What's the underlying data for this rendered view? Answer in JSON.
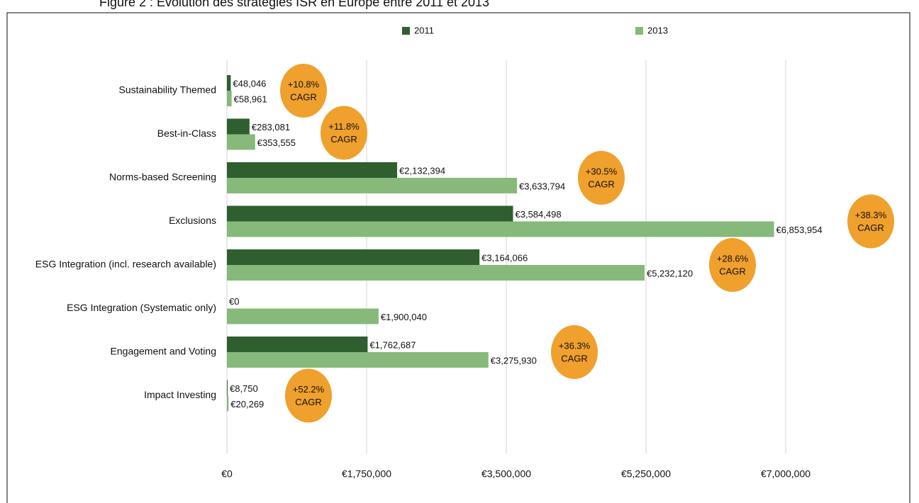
{
  "chart_data": {
    "type": "bar",
    "orientation": "horizontal",
    "title": "Figure 2 : Evolution des stratégies ISR en Europe entre 2011 et 2013",
    "categories": [
      "Sustainability Themed",
      "Best-in-Class",
      "Norms-based Screening",
      "Exclusions",
      "ESG Integration (incl. research available)",
      "ESG Integration (Systematic only)",
      "Engagement and Voting",
      "Impact Investing"
    ],
    "series": [
      {
        "name": "2011",
        "color": "#2f5e2f",
        "values": [
          48046,
          283081,
          2132394,
          3584498,
          3164066,
          0,
          1762687,
          8750
        ],
        "value_labels": [
          "€48,046",
          "€283,081",
          "€2,132,394",
          "€3,584,498",
          "€3,164,066",
          "€0",
          "€1,762,687",
          "€8,750"
        ]
      },
      {
        "name": "2013",
        "color": "#86b97a",
        "values": [
          58961,
          353555,
          3633794,
          6853954,
          5232120,
          1900040,
          3275930,
          20269
        ],
        "value_labels": [
          "€58,961",
          "€353,555",
          "€3,633,794",
          "€6,853,954",
          "€5,232,120",
          "€1,900,040",
          "€3,275,930",
          "€20,269"
        ]
      }
    ],
    "annotations": [
      {
        "category": 0,
        "text": "+10.8%"
      },
      {
        "category": 1,
        "text": "+11.8%"
      },
      {
        "category": 2,
        "text": "+30.5%"
      },
      {
        "category": 3,
        "text": "+38.3%"
      },
      {
        "category": 4,
        "text": "+28.6%"
      },
      {
        "category": 6,
        "text": "+36.3%"
      },
      {
        "category": 7,
        "text": "+52.2%"
      }
    ],
    "annotation_suffix": "CAGR",
    "annotation_color": "#f0a02c",
    "xlim": [
      0,
      7000000
    ],
    "xticks": [
      {
        "value": 0,
        "label": "€0"
      },
      {
        "value": 1750000,
        "label": "€1,750,000"
      },
      {
        "value": 3500000,
        "label": "€3,500,000"
      },
      {
        "value": 5250000,
        "label": "€5,250,000"
      },
      {
        "value": 7000000,
        "label": "€7,000,000"
      }
    ],
    "grid": true,
    "legend": "top"
  }
}
